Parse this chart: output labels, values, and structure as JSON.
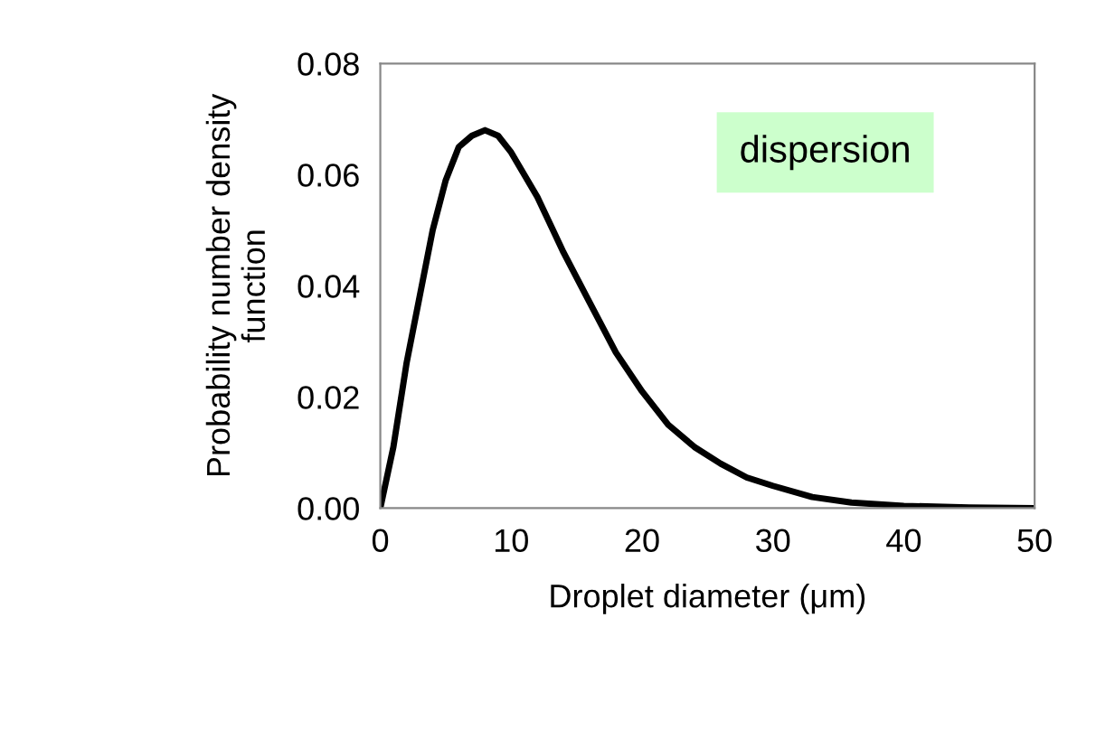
{
  "chart_data": {
    "type": "line",
    "xlabel": "Droplet diameter (μm)",
    "ylabel": "Probability number density\nfunction",
    "x": [
      0,
      1,
      2,
      3,
      4,
      5,
      6,
      7,
      8,
      9,
      10,
      12,
      14,
      16,
      18,
      20,
      22,
      24,
      26,
      28,
      30,
      33,
      36,
      40,
      45,
      50
    ],
    "series": [
      {
        "color": "#000000",
        "values": [
          0,
          0.011,
          0.026,
          0.038,
          0.05,
          0.059,
          0.065,
          0.067,
          0.068,
          0.067,
          0.064,
          0.056,
          0.046,
          0.037,
          0.028,
          0.021,
          0.015,
          0.011,
          0.008,
          0.0055,
          0.004,
          0.002,
          0.001,
          0.0004,
          0.0001,
          0
        ]
      }
    ],
    "xlim": [
      0,
      50
    ],
    "xticks": [
      0,
      10,
      20,
      30,
      40,
      50
    ],
    "ylim": [
      0,
      0.08
    ],
    "yticks": [
      {
        "value": 0,
        "label": "0.00"
      },
      {
        "value": 0.02,
        "label": "0.02"
      },
      {
        "value": 0.04,
        "label": "0.04"
      },
      {
        "value": 0.06,
        "label": "0.06"
      },
      {
        "value": 0.08,
        "label": "0.08"
      }
    ],
    "annotations": [
      "dispersion"
    ],
    "grid": false,
    "legend": false,
    "marker": "none",
    "line_style": "solid"
  }
}
